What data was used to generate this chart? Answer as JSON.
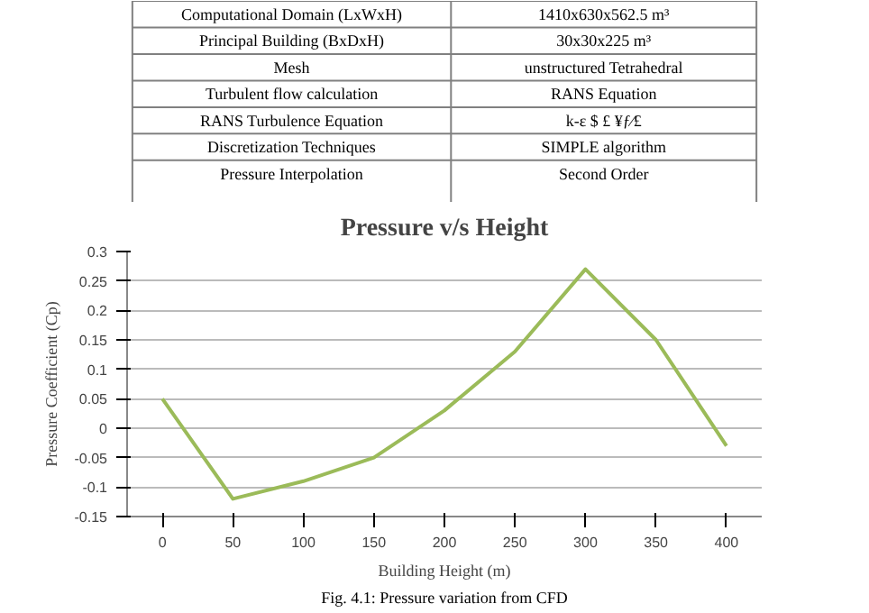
{
  "chart_data": {
    "type": "line",
    "title": "Pressure v/s Height",
    "xlabel": "Building Height (m)",
    "ylabel": "Pressure Coefficient (Cp)",
    "categories": [
      "0",
      "50",
      "100",
      "150",
      "200",
      "250",
      "300",
      "350",
      "400"
    ],
    "series": [
      {
        "color": "#9bbb59",
        "values": [
          0.05,
          -0.12,
          -0.09,
          -0.05,
          0.03,
          0.13,
          0.27,
          0.15,
          -0.03
        ]
      }
    ],
    "ylim": [
      -0.15,
      0.3
    ],
    "yticks": [
      -0.15,
      -0.1,
      -0.05,
      0,
      0.05,
      0.1,
      0.15,
      0.2,
      0.25,
      0.3
    ],
    "grid": "y",
    "marker": "none",
    "line_style": "solid",
    "annotations": [
      "Computational Domain (LxWxH)",
      "1410x630x562.5 m³",
      "Principal Building (BxDxH)",
      "30x30x225 m³",
      "Mesh",
      "unstructured Tetrahedral",
      "Turbulent flow calculation",
      "RANS Equation",
      "RANS Turbulence Equation",
      "k-ε $ £ ¥ƒ⁄£",
      "Discretization Techniques",
      "SIMPLE algorithm",
      "Pressure Interpolation",
      "Second Order",
      "Fig. 4.1: Pressure variation from CFD"
    ]
  }
}
